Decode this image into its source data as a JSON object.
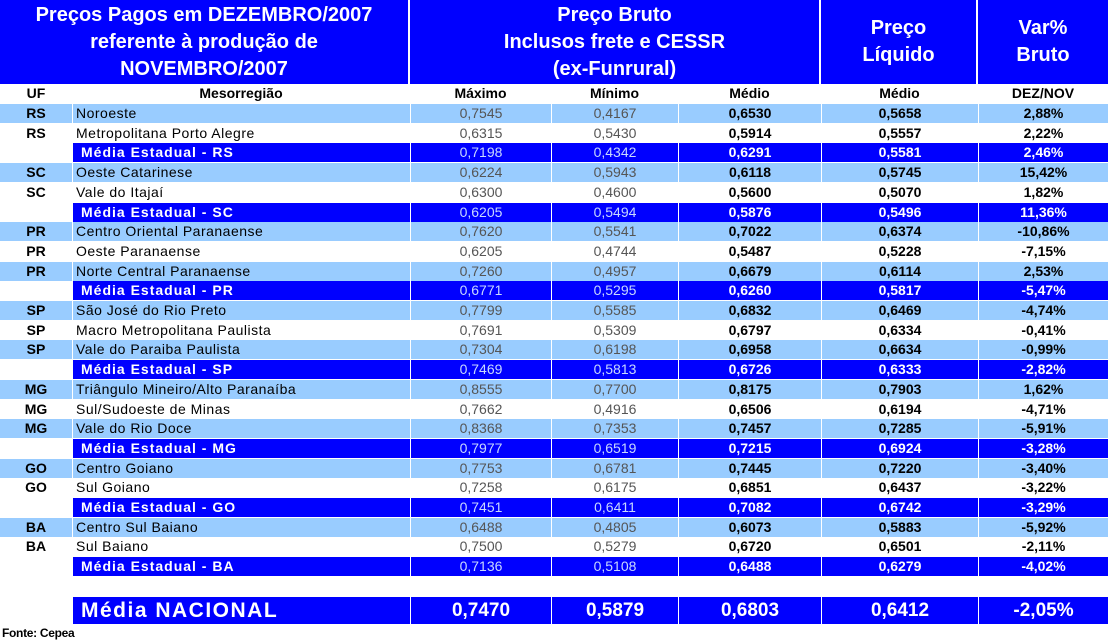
{
  "header": {
    "title_lines": [
      "Preços Pagos em DEZEMBRO/2007",
      "referente à produção de",
      "NOVEMBRO/2007"
    ],
    "bruto_lines": [
      "Preço Bruto",
      "Inclusos frete e CESSR",
      "(ex-Funrural)"
    ],
    "liquido_lines": [
      "Preço",
      "Líquido"
    ],
    "var_lines": [
      "Var%",
      "Bruto"
    ]
  },
  "subheader": {
    "uf": "UF",
    "meso": "Mesorregião",
    "max": "Máximo",
    "min": "Mínimo",
    "medio": "Médio",
    "medio_liq": "Médio",
    "var": "DEZ/NOV"
  },
  "rows": [
    {
      "type": "light",
      "uf": "RS",
      "meso": "Noroeste",
      "max": "0,7545",
      "min": "0,4167",
      "medio": "0,6530",
      "liq": "0,5658",
      "var": "2,88%"
    },
    {
      "type": "white",
      "uf": "RS",
      "meso": "Metropolitana Porto Alegre",
      "max": "0,6315",
      "min": "0,5430",
      "medio": "0,5914",
      "liq": "0,5557",
      "var": "2,22%"
    },
    {
      "type": "stat",
      "uf": "",
      "meso": "Média Estadual - RS",
      "max": "0,7198",
      "min": "0,4342",
      "medio": "0,6291",
      "liq": "0,5581",
      "var": "2,46%"
    },
    {
      "type": "light",
      "uf": "SC",
      "meso": "Oeste Catarinese",
      "max": "0,6224",
      "min": "0,5943",
      "medio": "0,6118",
      "liq": "0,5745",
      "var": "15,42%"
    },
    {
      "type": "white",
      "uf": "SC",
      "meso": "Vale do Itajaí",
      "max": "0,6300",
      "min": "0,4600",
      "medio": "0,5600",
      "liq": "0,5070",
      "var": "1,82%"
    },
    {
      "type": "stat",
      "uf": "",
      "meso": "Média Estadual - SC",
      "max": "0,6205",
      "min": "0,5494",
      "medio": "0,5876",
      "liq": "0,5496",
      "var": "11,36%"
    },
    {
      "type": "light",
      "uf": "PR",
      "meso": "Centro Oriental Paranaense",
      "max": "0,7620",
      "min": "0,5541",
      "medio": "0,7022",
      "liq": "0,6374",
      "var": "-10,86%"
    },
    {
      "type": "white",
      "uf": "PR",
      "meso": "Oeste Paranaense",
      "max": "0,6205",
      "min": "0,4744",
      "medio": "0,5487",
      "liq": "0,5228",
      "var": "-7,15%"
    },
    {
      "type": "light",
      "uf": "PR",
      "meso": "Norte Central Paranaense",
      "max": "0,7260",
      "min": "0,4957",
      "medio": "0,6679",
      "liq": "0,6114",
      "var": "2,53%"
    },
    {
      "type": "stat",
      "uf": "",
      "meso": "Média Estadual - PR",
      "max": "0,6771",
      "min": "0,5295",
      "medio": "0,6260",
      "liq": "0,5817",
      "var": "-5,47%"
    },
    {
      "type": "light",
      "uf": "SP",
      "meso": "São José do Rio Preto",
      "max": "0,7799",
      "min": "0,5585",
      "medio": "0,6832",
      "liq": "0,6469",
      "var": "-4,74%"
    },
    {
      "type": "white",
      "uf": "SP",
      "meso": "Macro Metropolitana Paulista",
      "max": "0,7691",
      "min": "0,5309",
      "medio": "0,6797",
      "liq": "0,6334",
      "var": "-0,41%"
    },
    {
      "type": "light",
      "uf": "SP",
      "meso": "Vale do Paraiba Paulista",
      "max": "0,7304",
      "min": "0,6198",
      "medio": "0,6958",
      "liq": "0,6634",
      "var": "-0,99%"
    },
    {
      "type": "stat",
      "uf": "",
      "meso": "Média Estadual - SP",
      "max": "0,7469",
      "min": "0,5813",
      "medio": "0,6726",
      "liq": "0,6333",
      "var": "-2,82%"
    },
    {
      "type": "light",
      "uf": "MG",
      "meso": "Triângulo Mineiro/Alto Paranaíba",
      "max": "0,8555",
      "min": "0,7700",
      "medio": "0,8175",
      "liq": "0,7903",
      "var": "1,62%"
    },
    {
      "type": "white",
      "uf": "MG",
      "meso": "Sul/Sudoeste de Minas",
      "max": "0,7662",
      "min": "0,4916",
      "medio": "0,6506",
      "liq": "0,6194",
      "var": "-4,71%"
    },
    {
      "type": "light",
      "uf": "MG",
      "meso": "Vale do Rio Doce",
      "max": "0,8368",
      "min": "0,7353",
      "medio": "0,7457",
      "liq": "0,7285",
      "var": "-5,91%"
    },
    {
      "type": "stat",
      "uf": "",
      "meso": "Média Estadual - MG",
      "max": "0,7977",
      "min": "0,6519",
      "medio": "0,7215",
      "liq": "0,6924",
      "var": "-3,28%"
    },
    {
      "type": "light",
      "uf": "GO",
      "meso": "Centro Goiano",
      "max": "0,7753",
      "min": "0,6781",
      "medio": "0,7445",
      "liq": "0,7220",
      "var": "-3,40%"
    },
    {
      "type": "white",
      "uf": "GO",
      "meso": "Sul Goiano",
      "max": "0,7258",
      "min": "0,6175",
      "medio": "0,6851",
      "liq": "0,6437",
      "var": "-3,22%"
    },
    {
      "type": "stat",
      "uf": "",
      "meso": "Média Estadual - GO",
      "max": "0,7451",
      "min": "0,6411",
      "medio": "0,7082",
      "liq": "0,6742",
      "var": "-3,29%"
    },
    {
      "type": "light",
      "uf": "BA",
      "meso": "Centro Sul Baiano",
      "max": "0,6488",
      "min": "0,4805",
      "medio": "0,6073",
      "liq": "0,5883",
      "var": "-5,92%"
    },
    {
      "type": "white",
      "uf": "BA",
      "meso": "Sul Baiano",
      "max": "0,7500",
      "min": "0,5279",
      "medio": "0,6720",
      "liq": "0,6501",
      "var": "-2,11%"
    },
    {
      "type": "stat",
      "uf": "",
      "meso": "Média Estadual - BA",
      "max": "0,7136",
      "min": "0,5108",
      "medio": "0,6488",
      "liq": "0,6279",
      "var": "-4,02%"
    }
  ],
  "national": {
    "meso": "Média NACIONAL",
    "max": "0,7470",
    "min": "0,5879",
    "medio": "0,6803",
    "liq": "0,6412",
    "var": "-2,05%"
  },
  "source": "Fonte: Cepea"
}
